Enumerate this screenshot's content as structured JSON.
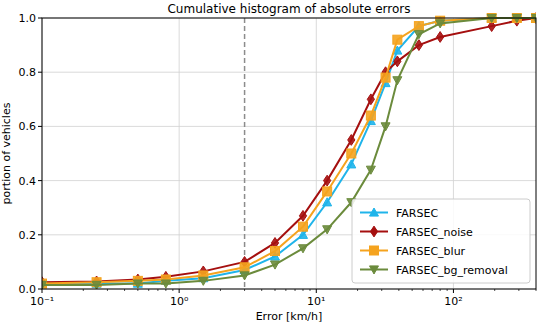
{
  "chart_data": {
    "type": "line",
    "title": "Cumulative histogram of absolute errors",
    "x_label": "Error [km/h]",
    "y_label": "portion of vehicles",
    "log": "x",
    "grid": true,
    "legend": "lower right",
    "xlim": [
      0.1,
      400
    ],
    "ylim": [
      0,
      1
    ],
    "xticks": [
      {
        "value": 0.1,
        "label": "10⁻¹"
      },
      {
        "value": 1,
        "label": "10⁰"
      },
      {
        "value": 10,
        "label": "10¹"
      },
      {
        "value": 100,
        "label": "10²"
      }
    ],
    "yticks": [
      {
        "value": 0,
        "label": "0.0"
      },
      {
        "value": 0.2,
        "label": "0.2"
      },
      {
        "value": 0.4,
        "label": "0.4"
      },
      {
        "value": 0.6,
        "label": "0.6"
      },
      {
        "value": 0.8,
        "label": "0.8"
      },
      {
        "value": 1,
        "label": "1.0"
      }
    ],
    "x": [
      0.1,
      0.25,
      0.5,
      0.8,
      1.5,
      3,
      5,
      8,
      12,
      18,
      25,
      32,
      39,
      56,
      80,
      190,
      290,
      400
    ],
    "series": [
      {
        "name": "FARSEC",
        "color": "#1fb4ea",
        "marker": "triangle-up",
        "values": [
          0.02,
          0.02,
          0.02,
          0.03,
          0.04,
          0.07,
          0.12,
          0.2,
          0.32,
          0.46,
          0.62,
          0.76,
          0.88,
          0.97,
          0.99,
          1.0,
          1.0,
          1.0
        ]
      },
      {
        "name": "FARSEC_noise",
        "color": "#a50f0f",
        "marker": "diamond",
        "values": [
          0.025,
          0.028,
          0.035,
          0.045,
          0.065,
          0.1,
          0.17,
          0.27,
          0.4,
          0.55,
          0.7,
          0.8,
          0.84,
          0.9,
          0.93,
          0.97,
          0.99,
          1.0
        ]
      },
      {
        "name": "FARSEC_blur",
        "color": "#f5a31e",
        "marker": "square",
        "values": [
          0.02,
          0.025,
          0.03,
          0.035,
          0.05,
          0.08,
          0.14,
          0.23,
          0.36,
          0.5,
          0.64,
          0.78,
          0.92,
          0.97,
          0.99,
          1.0,
          1.0,
          1.0
        ]
      },
      {
        "name": "FARSEC_bg_removal",
        "color": "#6b8b3c",
        "marker": "triangle-down",
        "values": [
          0.015,
          0.015,
          0.02,
          0.02,
          0.03,
          0.05,
          0.09,
          0.15,
          0.22,
          0.32,
          0.44,
          0.6,
          0.77,
          0.94,
          0.98,
          1.0,
          1.0,
          1.0
        ]
      }
    ],
    "annotations": [
      {
        "x": 3,
        "line_style": "dashed",
        "color": "#8c8c8c"
      }
    ]
  }
}
